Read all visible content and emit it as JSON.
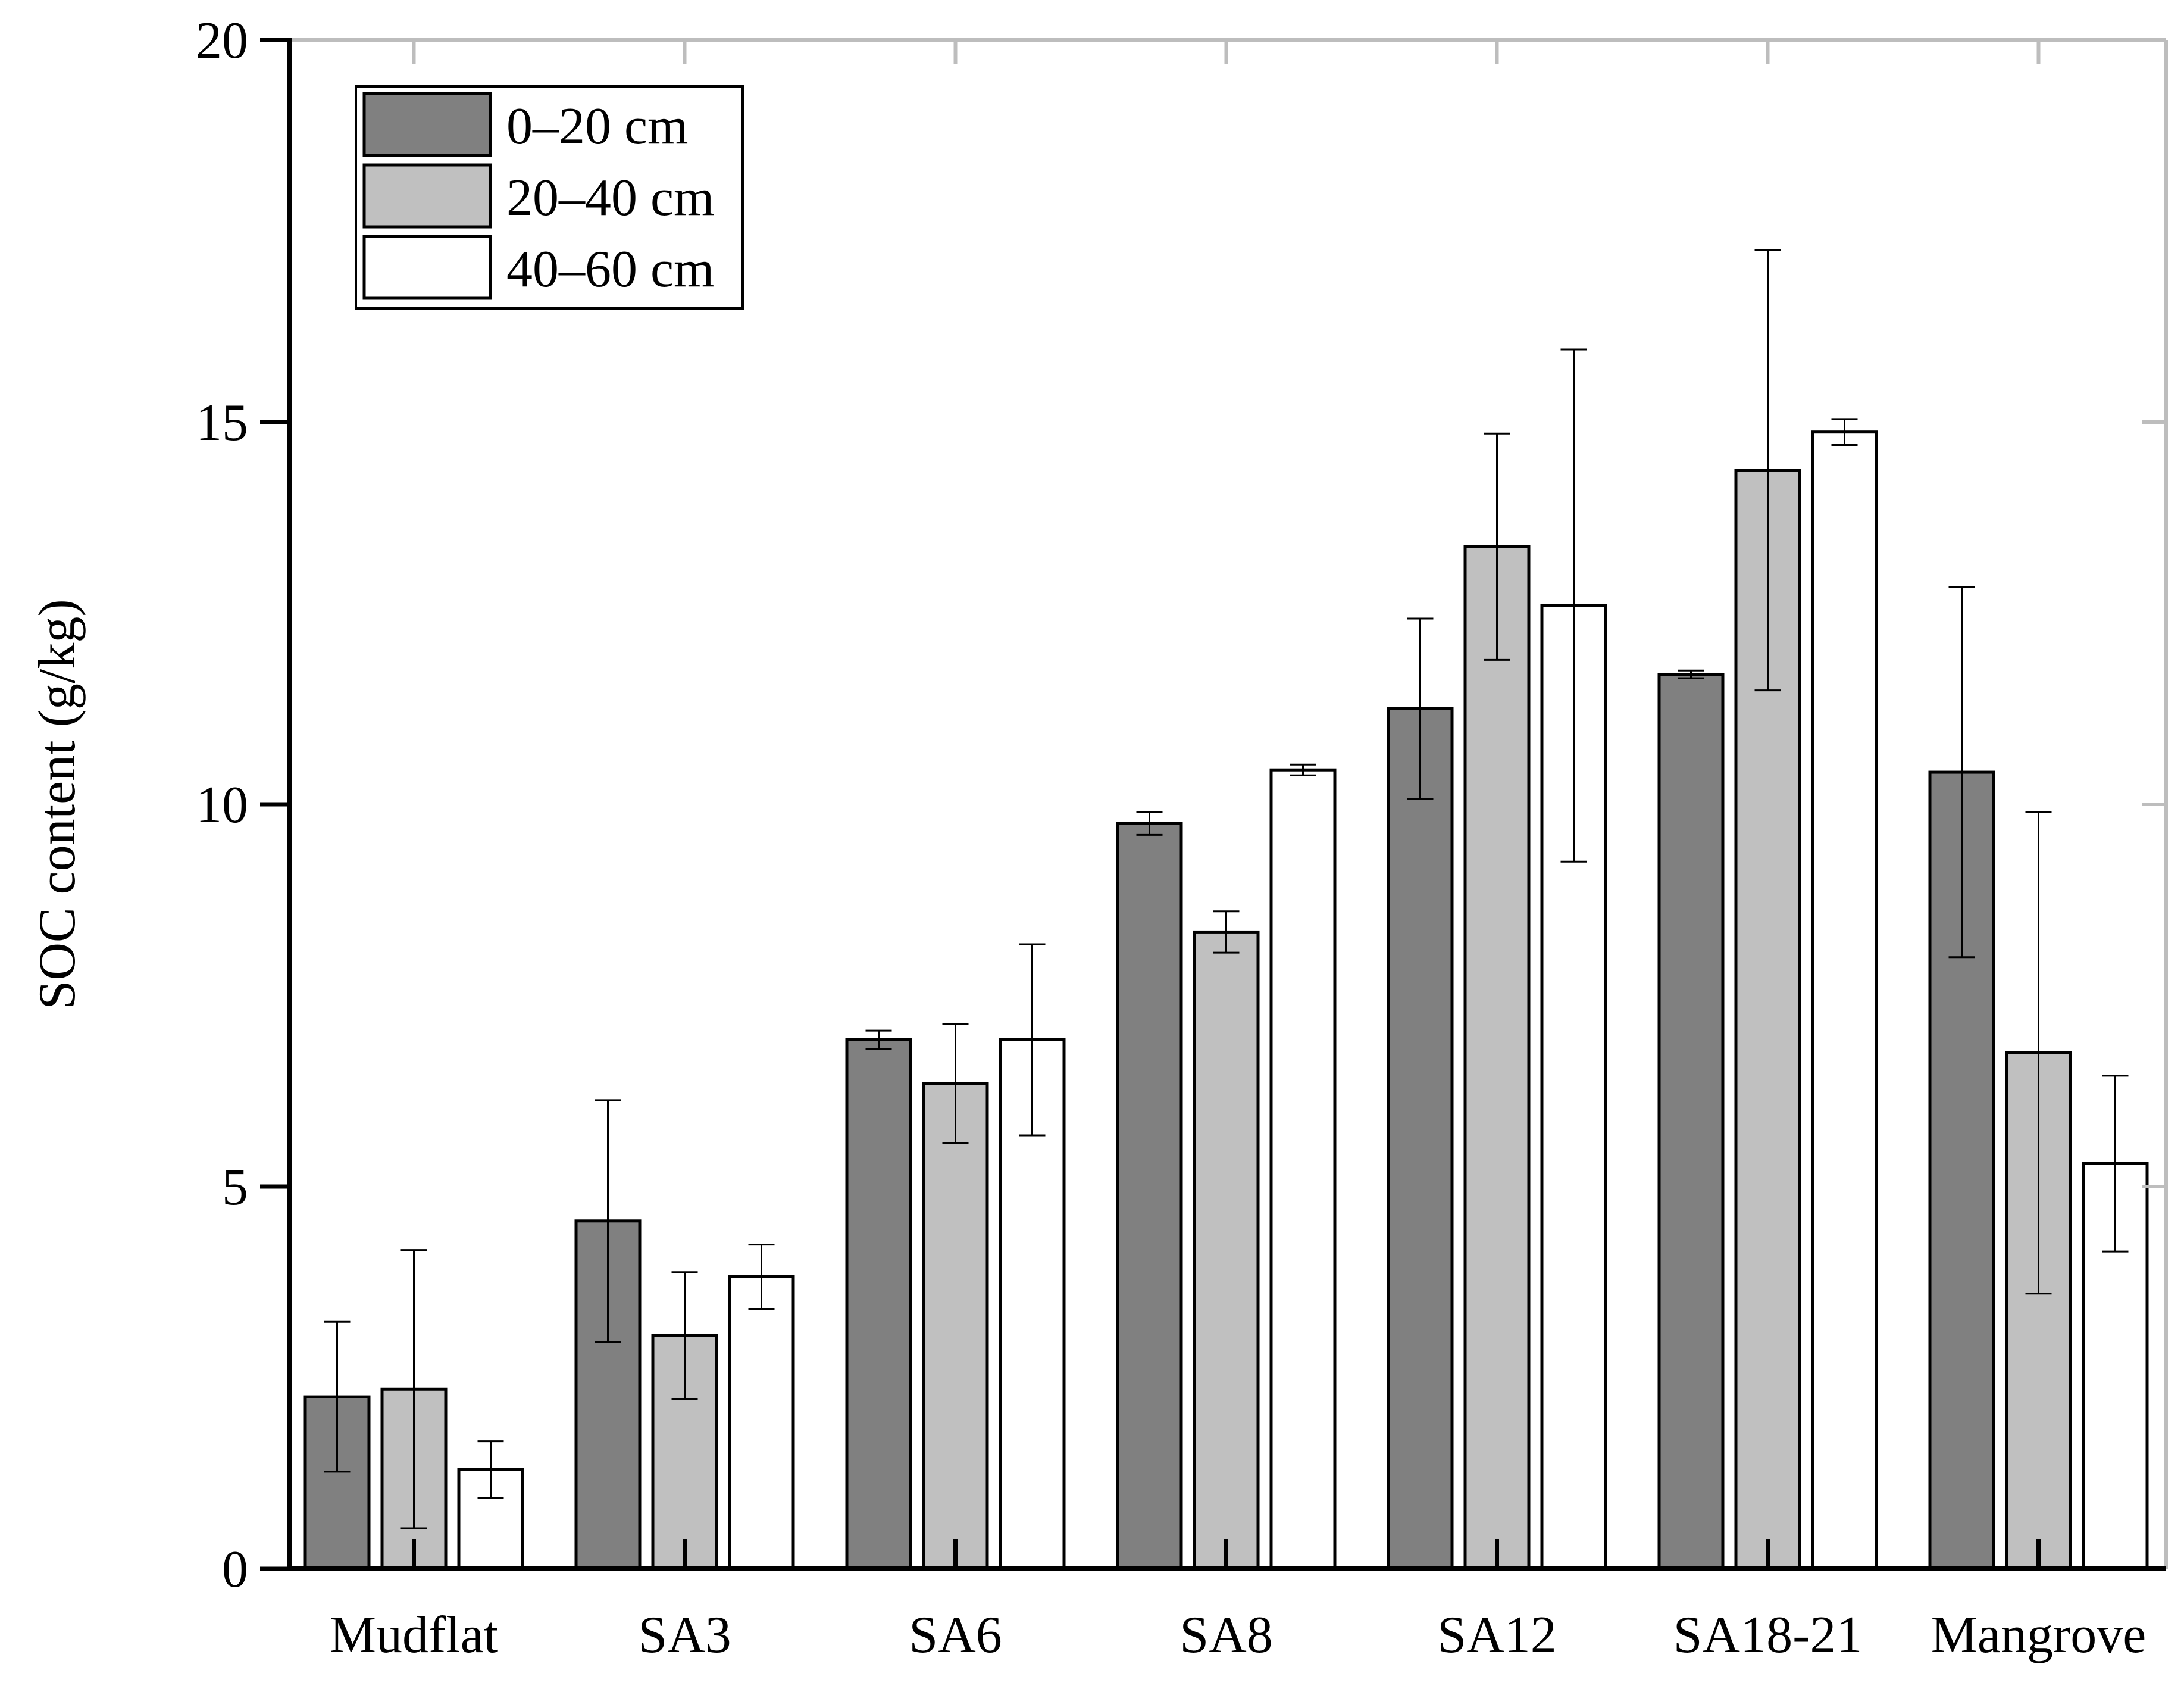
{
  "chart_data": {
    "type": "bar",
    "title": "",
    "xlabel": "",
    "ylabel": "SOC content (g/kg)",
    "ylim": [
      0,
      20
    ],
    "yticks": [
      0,
      5,
      10,
      15,
      20
    ],
    "ytick_labels": [
      "0",
      "5",
      "10",
      "15",
      "20"
    ],
    "categories": [
      "Mudflat",
      "SA3",
      "SA6",
      "SA8",
      "SA12",
      "SA18-21",
      "Mangrove"
    ],
    "legend_position": "top-left",
    "series": [
      {
        "name": "0–20 cm",
        "color": "#808080",
        "values": [
          2.25,
          4.55,
          6.92,
          9.75,
          11.25,
          11.7,
          10.42
        ],
        "errors": [
          0.98,
          1.58,
          0.12,
          0.15,
          1.18,
          0.05,
          2.42
        ]
      },
      {
        "name": "20–40 cm",
        "color": "#c0c0c0",
        "values": [
          2.35,
          3.05,
          6.35,
          8.33,
          13.37,
          14.37,
          6.75
        ],
        "errors": [
          1.82,
          0.83,
          0.78,
          0.27,
          1.48,
          2.88,
          3.15
        ]
      },
      {
        "name": "40–60 cm",
        "color": "#ffffff",
        "values": [
          1.3,
          3.82,
          6.92,
          10.45,
          12.6,
          14.87,
          5.3
        ],
        "errors": [
          0.37,
          0.42,
          1.25,
          0.07,
          3.35,
          0.17,
          1.15
        ]
      }
    ]
  }
}
